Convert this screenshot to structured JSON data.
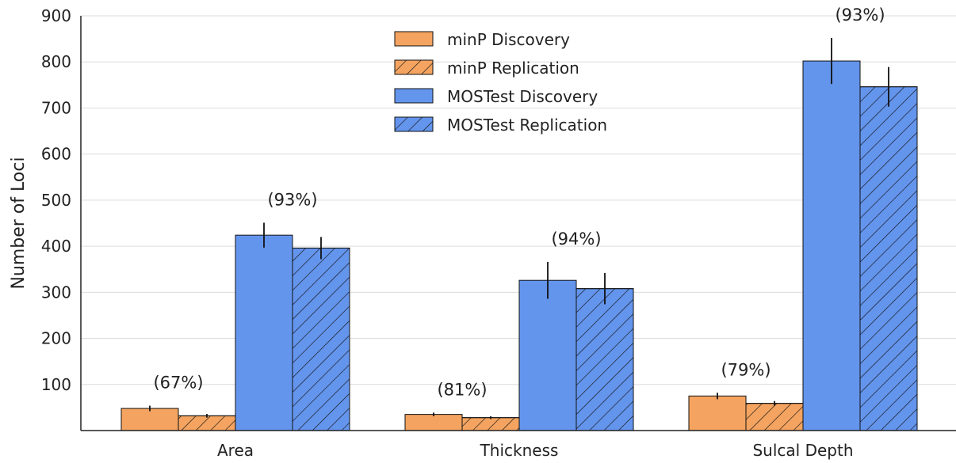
{
  "chart_data": {
    "type": "bar",
    "categories": [
      "Area",
      "Thickness",
      "Sulcal Depth"
    ],
    "ylabel": "Number of Loci",
    "xlabel": "",
    "ylim": [
      0,
      900
    ],
    "yticks": [
      100,
      200,
      300,
      400,
      500,
      600,
      700,
      800,
      900
    ],
    "grid": true,
    "legend_position": "top-center",
    "series": [
      {
        "name": "minP Discovery",
        "values": [
          48,
          35,
          75
        ],
        "errors": [
          6,
          4,
          7
        ],
        "color": "#f4a460",
        "hatch": false
      },
      {
        "name": "minP Replication",
        "values": [
          32,
          28,
          59
        ],
        "errors": [
          4,
          3,
          5
        ],
        "color": "#f4a460",
        "hatch": true
      },
      {
        "name": "MOSTest Discovery",
        "values": [
          424,
          326,
          802
        ],
        "errors": [
          27,
          40,
          50
        ],
        "color": "#6495ed",
        "hatch": false
      },
      {
        "name": "MOSTest Replication",
        "values": [
          396,
          308,
          746
        ],
        "errors": [
          24,
          34,
          43
        ],
        "color": "#6495ed",
        "hatch": true
      }
    ],
    "annotations": [
      {
        "category": "Area",
        "pair": "minP",
        "text": "(67%)"
      },
      {
        "category": "Area",
        "pair": "MOSTest",
        "text": "(93%)"
      },
      {
        "category": "Thickness",
        "pair": "minP",
        "text": "(81%)"
      },
      {
        "category": "Thickness",
        "pair": "MOSTest",
        "text": "(94%)"
      },
      {
        "category": "Sulcal Depth",
        "pair": "minP",
        "text": "(79%)"
      },
      {
        "category": "Sulcal Depth",
        "pair": "MOSTest",
        "text": "(93%)"
      }
    ]
  }
}
